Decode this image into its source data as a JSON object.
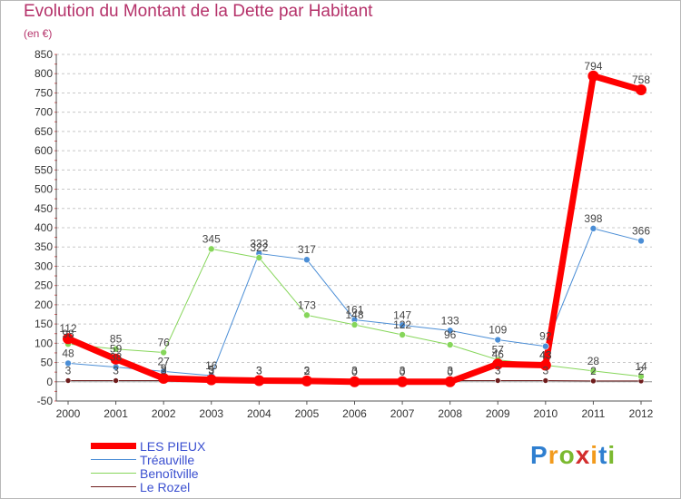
{
  "header": {
    "title": "Evolution du Montant de la Dette par Habitant",
    "unit": "(en €)"
  },
  "brand": {
    "letters": [
      "P",
      "r",
      "o",
      "x",
      "i",
      "t",
      "i"
    ],
    "colors": [
      "#2f7fd0",
      "#f29b1d",
      "#7bb92f",
      "#d32d2d",
      "#f29b1d",
      "#2f7fd0",
      "#7bb92f"
    ]
  },
  "chart_data": {
    "type": "line",
    "title": "Evolution du Montant de la Dette par Habitant",
    "ylabel": "(en €)",
    "xlabel": "",
    "ylim": [
      -50,
      850
    ],
    "yticks": [
      -50,
      0,
      50,
      100,
      150,
      200,
      250,
      300,
      350,
      400,
      450,
      500,
      550,
      600,
      650,
      700,
      750,
      800,
      850
    ],
    "categories": [
      "2000",
      "2001",
      "2002",
      "2003",
      "2004",
      "2005",
      "2006",
      "2007",
      "2008",
      "2009",
      "2010",
      "2011",
      "2012"
    ],
    "grid": "horizontal",
    "series": [
      {
        "name": "Le Rozel",
        "color": "#6e1c1c",
        "width": 1,
        "marker": 3,
        "values": [
          3,
          3,
          3,
          3,
          3,
          3,
          3,
          3,
          3,
          3,
          3,
          2,
          2
        ]
      },
      {
        "name": "Tréauville",
        "color": "#4b8ed6",
        "width": 1,
        "marker": 3.5,
        "values": [
          48,
          38,
          27,
          16,
          333,
          317,
          161,
          147,
          133,
          109,
          92,
          398,
          366
        ]
      },
      {
        "name": "Benoîtville",
        "color": "#86d65a",
        "width": 1,
        "marker": 3.5,
        "values": [
          98,
          85,
          76,
          345,
          322,
          173,
          148,
          122,
          96,
          57,
          43,
          28,
          14
        ]
      },
      {
        "name": "LES PIEUX",
        "color": "#ff0000",
        "width": 7,
        "marker": 6,
        "values": [
          112,
          59,
          9,
          5,
          3,
          2,
          0,
          0,
          0,
          46,
          43,
          794,
          758
        ]
      }
    ],
    "legend": [
      {
        "name": "LES PIEUX",
        "color": "#ff0000",
        "width": 7
      },
      {
        "name": "Tréauville",
        "color": "#4b8ed6",
        "width": 1
      },
      {
        "name": "Benoîtville",
        "color": "#86d65a",
        "width": 1
      },
      {
        "name": "Le Rozel",
        "color": "#6e1c1c",
        "width": 1
      }
    ],
    "legend_position": "bottom-left"
  }
}
